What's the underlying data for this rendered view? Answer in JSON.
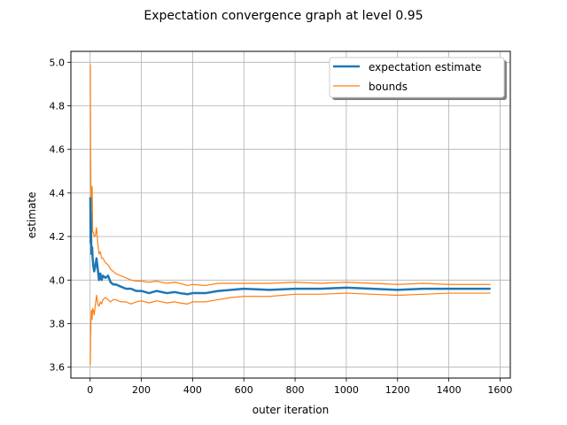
{
  "chart_data": {
    "type": "line",
    "title": "Expectation convergence graph at level 0.95",
    "xlabel": "outer iteration",
    "ylabel": "estimate",
    "xlim": [
      -75,
      1640
    ],
    "ylim": [
      3.55,
      5.05
    ],
    "xticks": [
      0,
      200,
      400,
      600,
      800,
      1000,
      1200,
      1400,
      1600
    ],
    "yticks": [
      3.6,
      3.8,
      4.0,
      4.2,
      4.4,
      4.6,
      4.8,
      5.0
    ],
    "xtick_labels": [
      "0",
      "200",
      "400",
      "600",
      "800",
      "1000",
      "1200",
      "1400",
      "1600"
    ],
    "ytick_labels": [
      "3.6",
      "3.8",
      "4.0",
      "4.2",
      "4.4",
      "4.6",
      "4.8",
      "5.0"
    ],
    "grid": true,
    "legend_position": "upper right",
    "colors": {
      "estimate": "#1f77b4",
      "bounds": "#ff7f0e"
    },
    "series": [
      {
        "name": "expectation estimate",
        "x": [
          1,
          2,
          3,
          5,
          8,
          10,
          13,
          16,
          20,
          25,
          30,
          35,
          40,
          45,
          50,
          60,
          70,
          80,
          90,
          100,
          120,
          140,
          160,
          180,
          200,
          230,
          260,
          300,
          330,
          350,
          380,
          400,
          450,
          500,
          550,
          600,
          700,
          800,
          900,
          1000,
          1100,
          1200,
          1300,
          1400,
          1500,
          1563
        ],
        "y": [
          4.38,
          4.17,
          4.3,
          4.12,
          4.15,
          4.1,
          4.06,
          4.04,
          4.06,
          4.1,
          4.05,
          4.0,
          4.03,
          4.0,
          4.02,
          4.01,
          4.02,
          3.99,
          3.98,
          3.98,
          3.97,
          3.96,
          3.96,
          3.95,
          3.95,
          3.94,
          3.95,
          3.94,
          3.945,
          3.94,
          3.935,
          3.94,
          3.94,
          3.95,
          3.955,
          3.96,
          3.955,
          3.96,
          3.96,
          3.965,
          3.96,
          3.955,
          3.96,
          3.96,
          3.96,
          3.96
        ]
      },
      {
        "name": "bounds",
        "x": [
          1,
          2,
          3,
          5,
          8,
          10,
          13,
          16,
          20,
          25,
          30,
          35,
          40,
          45,
          50,
          60,
          70,
          80,
          90,
          100,
          120,
          140,
          160,
          180,
          200,
          230,
          260,
          300,
          330,
          350,
          380,
          400,
          450,
          500,
          550,
          600,
          700,
          800,
          900,
          1000,
          1100,
          1200,
          1300,
          1400,
          1500,
          1563
        ],
        "y": [
          4.99,
          4.55,
          4.45,
          4.3,
          4.43,
          4.22,
          4.22,
          4.2,
          4.2,
          4.24,
          4.17,
          4.12,
          4.13,
          4.1,
          4.1,
          4.08,
          4.07,
          4.05,
          4.04,
          4.03,
          4.02,
          4.01,
          4.0,
          3.995,
          3.995,
          3.99,
          3.995,
          3.985,
          3.99,
          3.985,
          3.975,
          3.98,
          3.975,
          3.985,
          3.985,
          3.985,
          3.985,
          3.99,
          3.985,
          3.99,
          3.985,
          3.98,
          3.985,
          3.98,
          3.98,
          3.98
        ]
      },
      {
        "name": "",
        "x": [
          1,
          2,
          3,
          5,
          8,
          10,
          13,
          16,
          20,
          25,
          30,
          35,
          40,
          45,
          50,
          60,
          70,
          80,
          90,
          100,
          120,
          140,
          160,
          180,
          200,
          230,
          260,
          300,
          330,
          350,
          380,
          400,
          450,
          500,
          550,
          600,
          700,
          800,
          900,
          1000,
          1100,
          1200,
          1300,
          1400,
          1500,
          1563
        ],
        "y": [
          3.61,
          3.75,
          3.79,
          3.86,
          3.82,
          3.87,
          3.86,
          3.84,
          3.88,
          3.93,
          3.89,
          3.88,
          3.9,
          3.89,
          3.91,
          3.92,
          3.91,
          3.9,
          3.91,
          3.91,
          3.9,
          3.9,
          3.89,
          3.9,
          3.905,
          3.895,
          3.905,
          3.895,
          3.9,
          3.895,
          3.89,
          3.9,
          3.9,
          3.91,
          3.92,
          3.925,
          3.925,
          3.935,
          3.935,
          3.94,
          3.935,
          3.93,
          3.935,
          3.94,
          3.94,
          3.94
        ]
      }
    ]
  }
}
